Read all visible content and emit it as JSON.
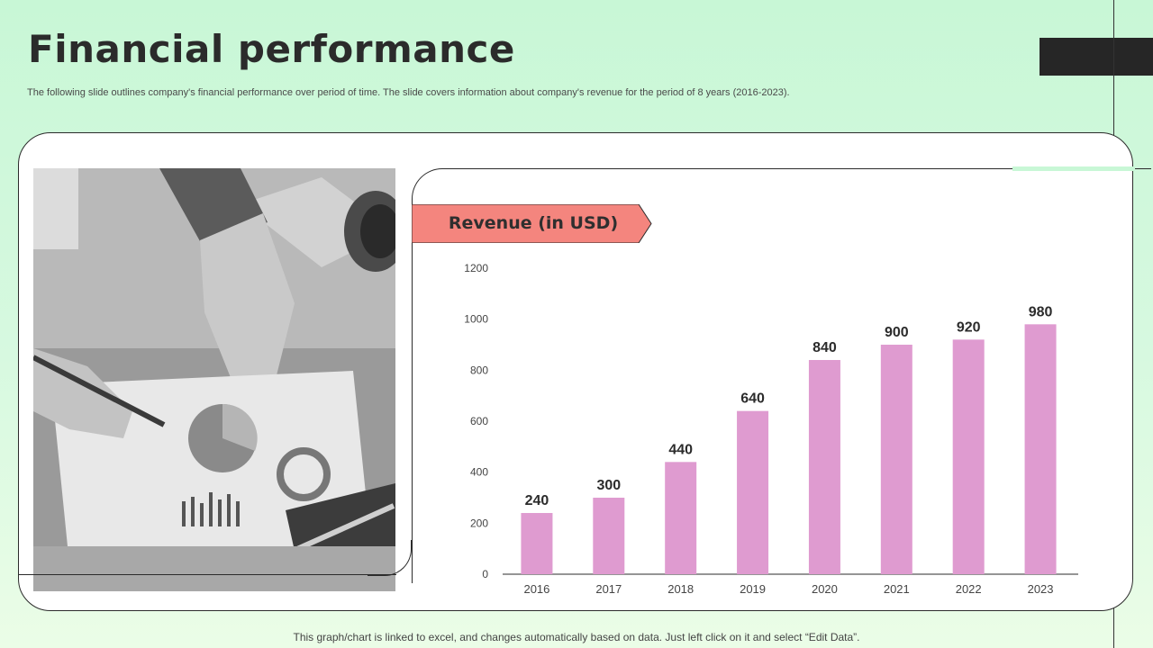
{
  "slide": {
    "title": "Financial performance",
    "subtitle": "The following slide outlines company's financial performance over period of time. The slide covers information about company's revenue for the period of 8 years (2016-2023).",
    "footer": "This graph/chart is linked to excel,  and changes automatically based on data. Just left click on it and select “Edit Data”."
  },
  "photo": {
    "description_icon": "business-meeting-photo"
  },
  "colors": {
    "background": "#c8f7d6",
    "bar": "#df9bd0",
    "banner": "#f4857e",
    "text_dark": "#2b2b2b"
  },
  "chart_data": {
    "type": "bar",
    "title": "Revenue (in USD)",
    "categories": [
      "2016",
      "2017",
      "2018",
      "2019",
      "2020",
      "2021",
      "2022",
      "2023"
    ],
    "values": [
      240,
      300,
      440,
      640,
      840,
      900,
      920,
      980
    ],
    "yticks": [
      0,
      200,
      400,
      600,
      800,
      1000,
      1200
    ],
    "ylim": [
      0,
      1200
    ],
    "data_labels": true,
    "grid": false,
    "legend": "none"
  }
}
